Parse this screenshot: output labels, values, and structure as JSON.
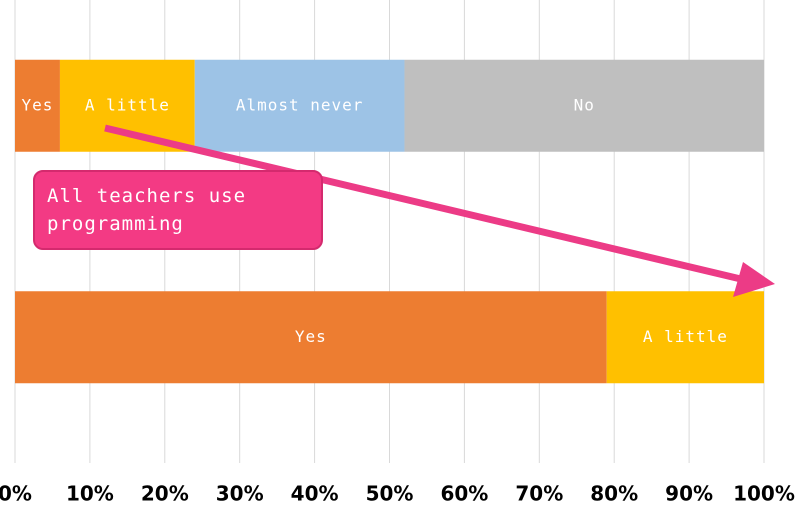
{
  "chart_data": {
    "type": "stacked-bar-horizontal",
    "categories": [
      null,
      null
    ],
    "series": [
      {
        "name": "Yes",
        "color": "#ed7d31",
        "values": [
          6,
          79
        ]
      },
      {
        "name": "A little",
        "color": "#ffc000",
        "values": [
          18,
          21
        ]
      },
      {
        "name": "Almost never",
        "color": "#9dc3e6",
        "values": [
          28,
          0
        ]
      },
      {
        "name": "No",
        "color": "#bfbfbf",
        "values": [
          48,
          0
        ]
      }
    ],
    "xlim": [
      0,
      100
    ],
    "xticks": [
      {
        "value": 0,
        "label": "0%"
      },
      {
        "value": 10,
        "label": "10%"
      },
      {
        "value": 20,
        "label": "20%"
      },
      {
        "value": 30,
        "label": "30%"
      },
      {
        "value": 40,
        "label": "40%"
      },
      {
        "value": 50,
        "label": "50%"
      },
      {
        "value": 60,
        "label": "60%"
      },
      {
        "value": 70,
        "label": "70%"
      },
      {
        "value": 80,
        "label": "80%"
      },
      {
        "value": 90,
        "label": "90%"
      },
      {
        "value": 100,
        "label": "100%"
      }
    ],
    "grid": true,
    "annotation": "All teachers use programming"
  }
}
